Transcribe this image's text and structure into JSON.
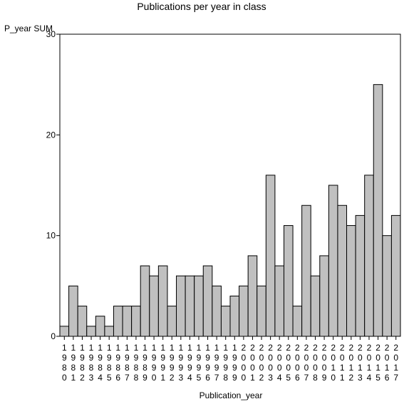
{
  "chart_data": {
    "type": "bar",
    "title": "Publications per year in class",
    "xlabel": "Publication_year",
    "ylabel": "P_year SUM",
    "ylim": [
      0,
      30
    ],
    "yticks": [
      0,
      10,
      20,
      30
    ],
    "grid": false,
    "categories": [
      "1980",
      "1981",
      "1982",
      "1983",
      "1984",
      "1985",
      "1986",
      "1987",
      "1988",
      "1989",
      "1990",
      "1991",
      "1992",
      "1993",
      "1994",
      "1995",
      "1996",
      "1997",
      "1998",
      "1999",
      "2000",
      "2001",
      "2002",
      "2003",
      "2004",
      "2005",
      "2006",
      "2007",
      "2008",
      "2009",
      "2010",
      "2011",
      "2012",
      "2013",
      "2014",
      "2015",
      "2016",
      "2017"
    ],
    "values": [
      1,
      5,
      3,
      1,
      2,
      1,
      3,
      3,
      3,
      7,
      6,
      7,
      3,
      6,
      6,
      6,
      7,
      5,
      3,
      4,
      5,
      8,
      5,
      16,
      7,
      11,
      3,
      13,
      6,
      8,
      15,
      13,
      11,
      12,
      16,
      25,
      10,
      12
    ],
    "colors": {
      "bar_fill": "#c0c0c0",
      "bar_stroke": "#000000",
      "axis": "#000000"
    }
  }
}
